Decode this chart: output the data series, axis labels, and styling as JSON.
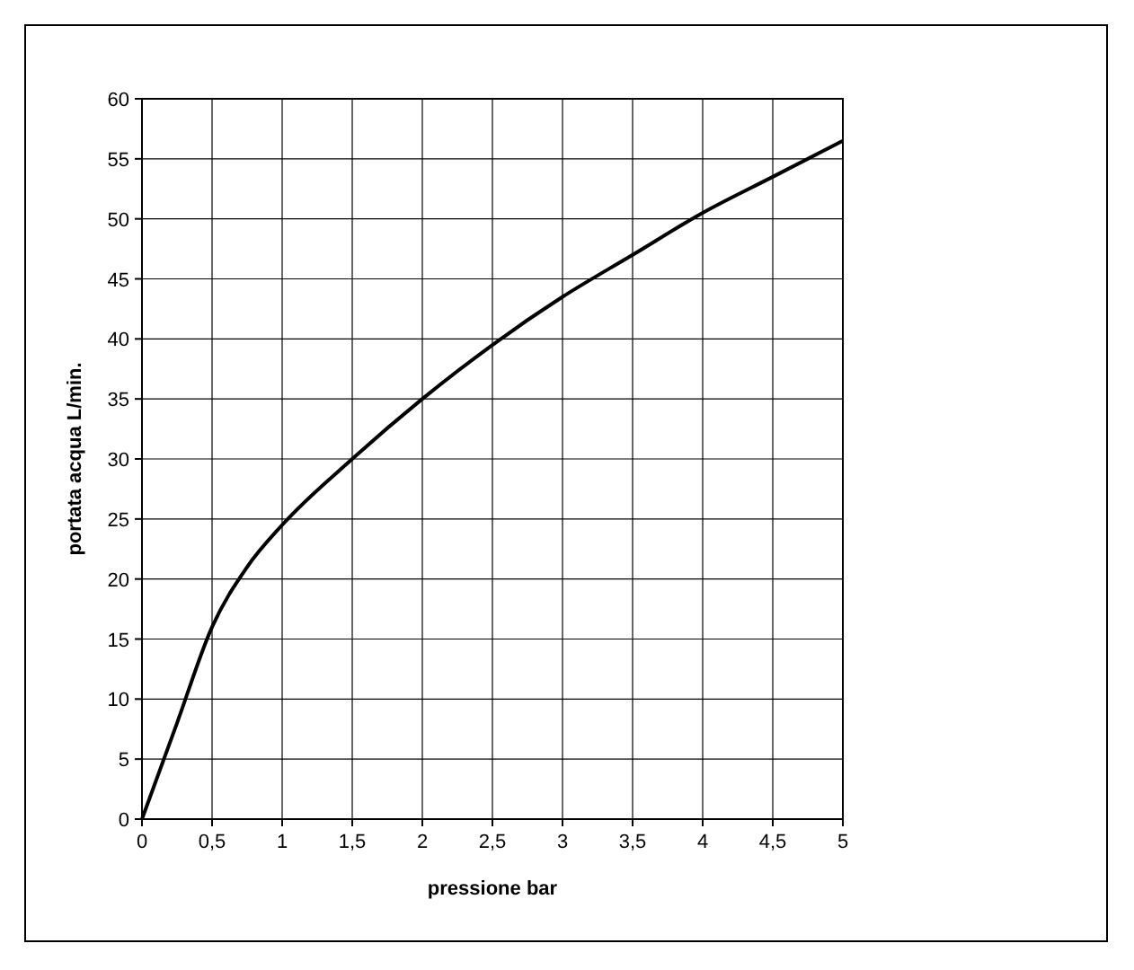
{
  "chart_data": {
    "type": "line",
    "xlabel": "pressione  bar",
    "ylabel": "portata acqua  L/min.",
    "x": [
      0,
      0.25,
      0.5,
      0.75,
      1,
      1.5,
      2,
      2.5,
      3,
      3.5,
      4,
      4.5,
      5
    ],
    "series": [
      {
        "color": "#000000",
        "values": [
          0,
          8,
          16,
          21,
          24.5,
          30,
          35,
          39.5,
          43.5,
          47,
          50.5,
          53.5,
          56.5
        ]
      }
    ],
    "xlim": [
      0,
      5
    ],
    "xticks": [
      0,
      {
        "value": 0.5,
        "label": "0,5"
      },
      1,
      {
        "value": 1.5,
        "label": "1,5"
      },
      2,
      {
        "value": 2.5,
        "label": "2,5"
      },
      3,
      {
        "value": 3.5,
        "label": "3,5"
      },
      4,
      {
        "value": 4.5,
        "label": "4,5"
      },
      5
    ],
    "ylim": [
      0,
      60
    ],
    "yticks": [
      0,
      5,
      10,
      15,
      20,
      25,
      30,
      35,
      40,
      45,
      50,
      55,
      60
    ],
    "grid": true,
    "marker": "none",
    "line_style": "solid"
  }
}
